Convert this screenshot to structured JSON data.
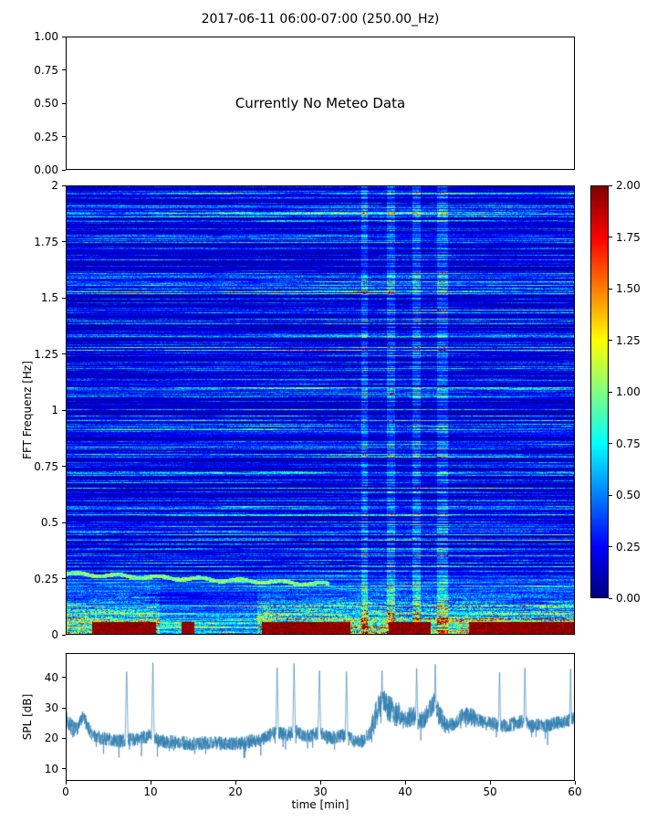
{
  "title": "2017-06-11 06:00-07:00 (250.00_Hz)",
  "colors": {
    "line": "#2d7cb0",
    "axis": "#000000",
    "background": "#ffffff"
  },
  "meteo_panel": {
    "message": "Currently No Meteo Data",
    "ylim": [
      0,
      1
    ],
    "yticks": [
      {
        "label": "1.00",
        "value": 1.0
      },
      {
        "label": "0.75",
        "value": 0.75
      },
      {
        "label": "0.50",
        "value": 0.5
      },
      {
        "label": "0.25",
        "value": 0.25
      },
      {
        "label": "0.00",
        "value": 0.0
      }
    ]
  },
  "chart_data": [
    {
      "type": "heatmap",
      "ylabel": "FFT Frequenz [Hz]",
      "xlim": [
        0,
        60
      ],
      "ylim": [
        0,
        2
      ],
      "yticks": [
        {
          "label": "2",
          "value": 2
        },
        {
          "label": "1.75",
          "value": 1.75
        },
        {
          "label": "1.5",
          "value": 1.5
        },
        {
          "label": "1.25",
          "value": 1.25
        },
        {
          "label": "1",
          "value": 1
        },
        {
          "label": "0.75",
          "value": 0.75
        },
        {
          "label": "0.5",
          "value": 0.5
        },
        {
          "label": "0.25",
          "value": 0.25
        },
        {
          "label": "0",
          "value": 0
        }
      ],
      "colormap": "jet",
      "value_range": [
        0,
        2
      ],
      "colorbar_ticks": [
        {
          "label": "2.00",
          "value": 2.0
        },
        {
          "label": "1.75",
          "value": 1.75
        },
        {
          "label": "1.50",
          "value": 1.5
        },
        {
          "label": "1.25",
          "value": 1.25
        },
        {
          "label": "1.00",
          "value": 1.0
        },
        {
          "label": "0.75",
          "value": 0.75
        },
        {
          "label": "0.50",
          "value": 0.5
        },
        {
          "label": "0.25",
          "value": 0.25
        },
        {
          "label": "0.00",
          "value": 0.0
        }
      ],
      "content": {
        "description": "Noisy dark-blue spectrogram with horizontal streaks, bright turbulent band below 0.32 Hz, saturated red strip at the very bottom in segments, faint lighter vertical stripes near 35-45 min and a thin bright descending line near 0.27 Hz for the first 31 min",
        "seed": 42,
        "low_freq_band_max_hz": 0.32,
        "red_band_max_hz": 0.055,
        "red_band_segments_min": [
          [
            3,
            10.5
          ],
          [
            13.5,
            15
          ],
          [
            23,
            33.5
          ],
          [
            38,
            43
          ],
          [
            47.5,
            60
          ]
        ],
        "quiet_low_band_min": [
          [
            11,
            22.5
          ]
        ],
        "bright_line": {
          "f0": 0.27,
          "slope": -0.0015,
          "t_end": 31
        },
        "vertical_stripes_min": [
          [
            34.8,
            35.6
          ],
          [
            37.8,
            38.8
          ],
          [
            40.8,
            41.8
          ],
          [
            43.8,
            45.0
          ]
        ]
      }
    },
    {
      "type": "line",
      "ylabel": "SPL [dB]",
      "xlabel": "time [min]",
      "xlim": [
        0,
        60
      ],
      "ylim": [
        6,
        48
      ],
      "yticks": [
        {
          "label": "40",
          "value": 40
        },
        {
          "label": "30",
          "value": 30
        },
        {
          "label": "20",
          "value": 20
        },
        {
          "label": "10",
          "value": 10
        }
      ],
      "xticks": [
        {
          "label": "0",
          "value": 0
        },
        {
          "label": "10",
          "value": 10
        },
        {
          "label": "20",
          "value": 20
        },
        {
          "label": "30",
          "value": 30
        },
        {
          "label": "40",
          "value": 40
        },
        {
          "label": "50",
          "value": 50
        },
        {
          "label": "60",
          "value": 60
        }
      ],
      "seed": 7,
      "baseline": [
        [
          0,
          26
        ],
        [
          0.5,
          24
        ],
        [
          1,
          22
        ],
        [
          2,
          27
        ],
        [
          2.5,
          24
        ],
        [
          3,
          21
        ],
        [
          4,
          20
        ],
        [
          5,
          19.5
        ],
        [
          6,
          19
        ],
        [
          8,
          19.5
        ],
        [
          9,
          20
        ],
        [
          10,
          21
        ],
        [
          11,
          19
        ],
        [
          13,
          18.5
        ],
        [
          15,
          18
        ],
        [
          17,
          18.5
        ],
        [
          19,
          18
        ],
        [
          21,
          18.5
        ],
        [
          23,
          19.5
        ],
        [
          24,
          21
        ],
        [
          25,
          22
        ],
        [
          26,
          21
        ],
        [
          27,
          22.5
        ],
        [
          28,
          20.5
        ],
        [
          29,
          21
        ],
        [
          30,
          21.5
        ],
        [
          31,
          20
        ],
        [
          32,
          20.5
        ],
        [
          33,
          21
        ],
        [
          34,
          19
        ],
        [
          35,
          19
        ],
        [
          36,
          22
        ],
        [
          36.5,
          27
        ],
        [
          37,
          31
        ],
        [
          37.5,
          33
        ],
        [
          38,
          30
        ],
        [
          39,
          28
        ],
        [
          40,
          26.5
        ],
        [
          41,
          27
        ],
        [
          42,
          26
        ],
        [
          42.5,
          27
        ],
        [
          43,
          30
        ],
        [
          43.5,
          32
        ],
        [
          44,
          28
        ],
        [
          45,
          24
        ],
        [
          46,
          25
        ],
        [
          47,
          27.5
        ],
        [
          48,
          27
        ],
        [
          49,
          25.5
        ],
        [
          50,
          25
        ],
        [
          51,
          24.5
        ],
        [
          52,
          24
        ],
        [
          53,
          25
        ],
        [
          54,
          25.5
        ],
        [
          55,
          24
        ],
        [
          56,
          24.5
        ],
        [
          57,
          24
        ],
        [
          58,
          25
        ],
        [
          59,
          25.5
        ],
        [
          60,
          26.5
        ]
      ],
      "spikes": [
        [
          7.1,
          44
        ],
        [
          10.2,
          45
        ],
        [
          24.9,
          44
        ],
        [
          26.9,
          45
        ],
        [
          29.9,
          44
        ],
        [
          33.1,
          43
        ],
        [
          37.3,
          43
        ],
        [
          41.4,
          44
        ],
        [
          43.6,
          45
        ],
        [
          51.2,
          43
        ],
        [
          54.2,
          44
        ],
        [
          59.6,
          43
        ]
      ],
      "noise_amp_default": 2.3,
      "noise_amp_regions": [
        [
          0,
          1.2,
          3
        ],
        [
          36,
          39.5,
          4.5
        ],
        [
          40.5,
          44.5,
          3.5
        ],
        [
          46.5,
          48.5,
          3
        ]
      ]
    }
  ]
}
